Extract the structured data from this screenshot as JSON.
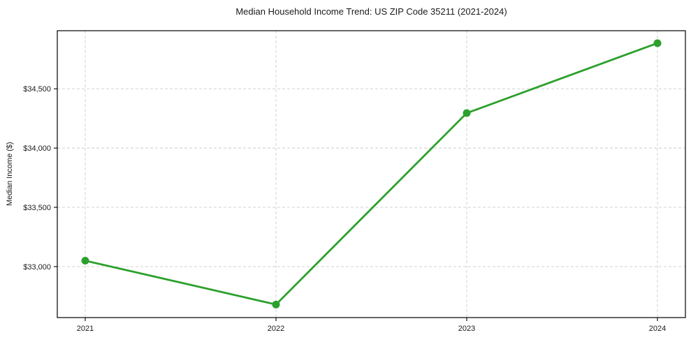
{
  "chart_data": {
    "type": "line",
    "title": "Median Household Income Trend: US ZIP Code 35211 (2021-2024)",
    "xlabel": "",
    "ylabel": "Median Income ($)",
    "categories": [
      "2021",
      "2022",
      "2023",
      "2024"
    ],
    "series": [
      {
        "name": "Median Household Income",
        "values": [
          33050,
          32680,
          34295,
          34885
        ]
      }
    ],
    "yticks": [
      {
        "value": 33000,
        "label": "$33,000"
      },
      {
        "value": 33500,
        "label": "$33,500"
      },
      {
        "value": 34000,
        "label": "$34,000"
      },
      {
        "value": 34500,
        "label": "$34,500"
      }
    ],
    "ylim": [
      32570,
      34990
    ],
    "grid": true,
    "grid_style": "dashed",
    "legend": "none",
    "line_color": "#2ca02c",
    "marker": "circle",
    "marker_color": "#2ca02c",
    "grid_color": "#cccccc",
    "spine_color": "#000000",
    "background_color": "#ffffff"
  }
}
